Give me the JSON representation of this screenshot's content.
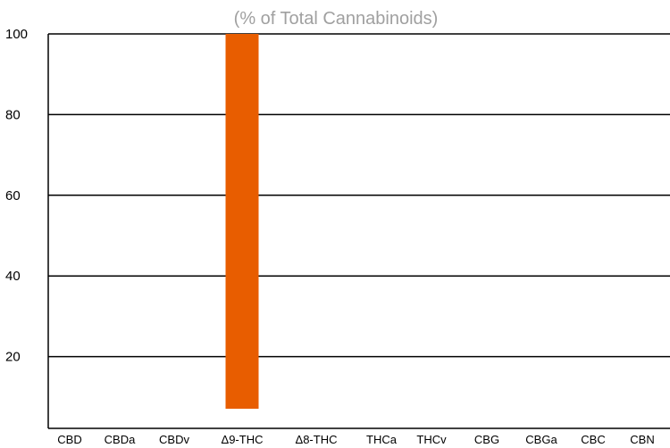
{
  "chart_data": {
    "type": "bar",
    "title": "(% of Total Cannabinoids)",
    "categories": [
      "CBD",
      "CBDa",
      "CBDv",
      "Δ9-THC",
      "Δ8-THC",
      "THCa",
      "THCv",
      "CBG",
      "CBGa",
      "CBC",
      "CBN"
    ],
    "values": [
      0,
      0,
      0,
      100,
      0,
      0,
      0,
      0,
      0,
      0,
      0
    ],
    "yticks": [
      "20",
      "40",
      "60",
      "80",
      "100"
    ],
    "ylim": [
      0,
      100
    ],
    "grid": true,
    "bar_color": "#e85d00"
  }
}
